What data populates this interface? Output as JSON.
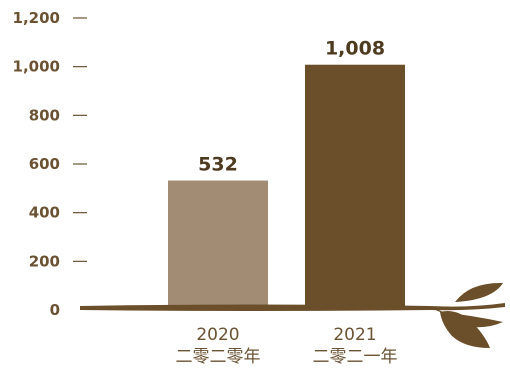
{
  "chart_data": {
    "type": "bar",
    "title": "",
    "xlabel": "",
    "ylabel": "",
    "ylim": [
      0,
      1200
    ],
    "yticks": [
      0,
      200,
      400,
      600,
      800,
      1000,
      1200
    ],
    "ytick_labels": [
      "0",
      "200",
      "400",
      "600",
      "800",
      "1,000",
      "1,200"
    ],
    "categories": [
      {
        "year": "2020",
        "chinese": "二零二零年"
      },
      {
        "year": "2021",
        "chinese": "二零二一年"
      }
    ],
    "values": [
      532,
      1008
    ],
    "value_labels": [
      "532",
      "1,008"
    ],
    "bar_colors": [
      "#a28c74",
      "#6b4f2a"
    ],
    "axis_color": "#6b4f2a",
    "tick_color": "#6b5233",
    "grid": false,
    "legend": "none"
  }
}
